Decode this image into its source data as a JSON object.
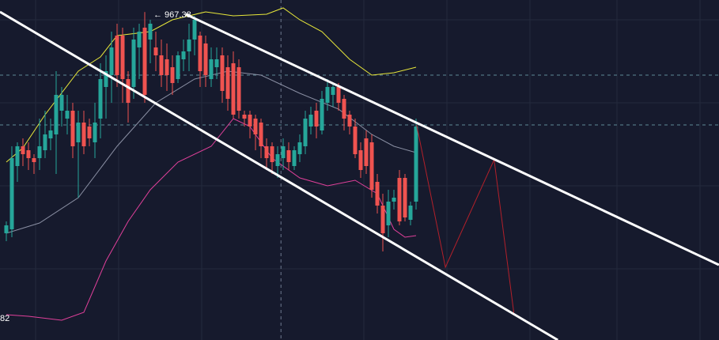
{
  "chart_data": {
    "type": "candlestick",
    "xlim": [
      -1.14,
      128.71
    ],
    "ylim": [
      760,
      975
    ],
    "up_color": "#26a69a",
    "down_color": "#ef5350",
    "candles": {
      "open": [
        827.5,
        830,
        870,
        882.5,
        880,
        875,
        875,
        880,
        887.5,
        890,
        905,
        900,
        905,
        885,
        897.5,
        895,
        885,
        900,
        920,
        927.5,
        952.5,
        952.5,
        925,
        920,
        945,
        957.5,
        950,
        945,
        940,
        937.5,
        932.5,
        925,
        937.5,
        942.5,
        950,
        952.5,
        947.5,
        925,
        932.5,
        940,
        932.5,
        935,
        932.5,
        902.5,
        902.5,
        900,
        897.5,
        882.5,
        882.5,
        870,
        875,
        880,
        870,
        877.5,
        882.5,
        895,
        905,
        892.5,
        910,
        915,
        920,
        912.5,
        902.5,
        895,
        880,
        887.5,
        885,
        860,
        845,
        832.5,
        847.5,
        862.5,
        862.5,
        836,
        847.5
      ],
      "high": [
        835,
        882.5,
        885,
        887.5,
        885,
        877.5,
        900,
        905,
        900,
        930,
        920,
        915,
        910,
        905,
        905,
        900,
        910,
        935,
        940,
        955,
        960,
        957.5,
        930,
        957.5,
        960,
        967.38,
        962.5,
        955,
        950,
        947.5,
        940,
        942.5,
        950,
        960,
        965,
        955,
        952.5,
        945,
        945,
        945,
        940,
        942.5,
        937.5,
        905,
        905,
        902.5,
        900,
        887.5,
        885,
        882.5,
        887.5,
        885,
        882.5,
        890,
        905,
        907.5,
        910,
        917.5,
        925,
        922.5,
        922.5,
        915,
        905,
        900,
        885,
        892.5,
        890,
        865,
        852.5,
        855,
        855,
        867.5,
        865,
        847.5,
        900
      ],
      "low": [
        822.5,
        825,
        860,
        870,
        867.5,
        865,
        867.5,
        875,
        880,
        865,
        895,
        890,
        875,
        850,
        877.5,
        882.5,
        875,
        887.5,
        900,
        910,
        920,
        910,
        897.5,
        912.5,
        925,
        910,
        935,
        930,
        920,
        917.5,
        915,
        922.5,
        930,
        930,
        940,
        920,
        920,
        920,
        925,
        910,
        905,
        900,
        900,
        895,
        887.5,
        880,
        875,
        867.5,
        865,
        862.5,
        867.5,
        867.5,
        867.5,
        872.5,
        877.5,
        890,
        887.5,
        890,
        905,
        907.5,
        905,
        892.5,
        890,
        875,
        862.5,
        865,
        850,
        840,
        816,
        825,
        842.5,
        832.5,
        835,
        832.5,
        842.5
      ],
      "close": [
        832.5,
        875,
        882.5,
        877.5,
        875,
        872.5,
        882.5,
        890,
        892.5,
        915,
        915,
        905,
        882.5,
        897.5,
        882.5,
        887.5,
        897.5,
        925,
        930,
        945,
        927.5,
        925,
        910,
        950,
        955,
        915,
        960,
        940,
        927.5,
        927.5,
        922.5,
        940,
        942.5,
        950,
        962.5,
        930,
        927.5,
        937.5,
        937.5,
        917.5,
        912.5,
        902.5,
        905,
        900,
        895,
        890,
        882.5,
        875,
        872.5,
        877.5,
        882.5,
        872.5,
        880,
        885,
        900,
        902.5,
        895,
        912.5,
        920,
        920,
        910,
        900,
        895,
        877.5,
        867.5,
        870,
        855,
        845,
        827.5,
        847.5,
        850,
        835,
        837.5,
        845,
        895
      ]
    },
    "bands": [
      {
        "color": "#e8e83a",
        "x": [
          0,
          3,
          7,
          13,
          17,
          20,
          26,
          30,
          36,
          41,
          47,
          50,
          53,
          57,
          62,
          66,
          70,
          74
        ],
        "values": [
          872.5,
          881.5,
          902.5,
          930,
          939,
          952.5,
          955,
          962.5,
          967.5,
          965,
          966,
          970,
          962.5,
          955,
          937.5,
          927.5,
          929,
          932.5
        ]
      },
      {
        "color": "#8a8fa3",
        "x": [
          0,
          6,
          13,
          20,
          27,
          34,
          40,
          46,
          53,
          60,
          66,
          70,
          74
        ],
        "values": [
          827.5,
          834,
          850,
          882.5,
          910,
          925,
          930,
          927.5,
          916,
          906,
          890,
          882.5,
          878.5
        ]
      },
      {
        "color": "#e0409a",
        "x": [
          0,
          4,
          10,
          14,
          18,
          22,
          26,
          31,
          37,
          41,
          44,
          48,
          53,
          58,
          63,
          67,
          70,
          72,
          74
        ],
        "values": [
          776,
          775,
          772.5,
          777.5,
          810,
          835,
          855,
          872.5,
          882.5,
          900,
          895,
          875,
          862.5,
          857.5,
          861,
          852.5,
          830,
          825,
          826
        ]
      }
    ],
    "trend_lines": [
      {
        "color": "#ffffff",
        "x": [
          -1.14,
          99.6
        ],
        "values": [
          967.5,
          760
        ]
      },
      {
        "color": "#ffffff",
        "x": [
          32.4,
          128.7
        ],
        "values": [
          966,
          807.5
        ]
      }
    ],
    "projection": {
      "color": "#b3202a",
      "x": [
        74.1,
        79.3,
        88.1,
        91.7
      ],
      "values": [
        896,
        806,
        874,
        776
      ]
    },
    "price_lines": [
      927.5,
      896
    ],
    "crosshair_x": 49.6,
    "annotations": [
      {
        "text": "← 967.38",
        "value": 967.38
      },
      {
        "text": "82"
      }
    ]
  }
}
